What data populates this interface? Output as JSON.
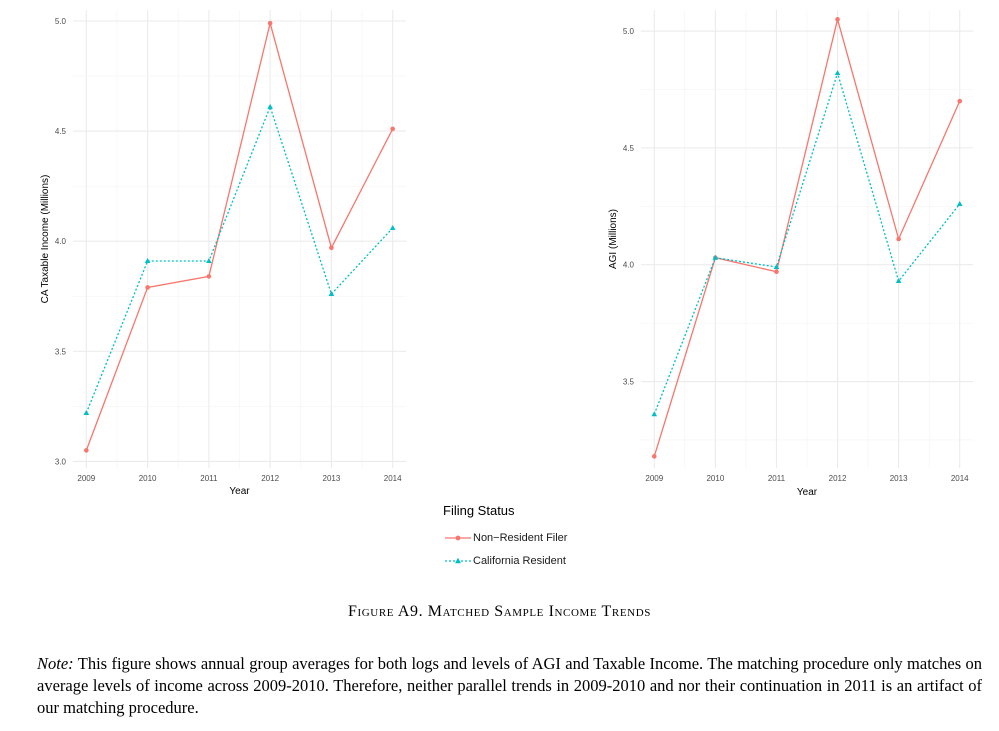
{
  "chart_data": [
    {
      "type": "line",
      "xlabel": "Year",
      "ylabel": "CA Taxable Income (Millions)",
      "x": [
        2009,
        2010,
        2011,
        2012,
        2013,
        2014
      ],
      "ylim": [
        2.97,
        5.05
      ],
      "yticks": [
        "3.0",
        "3.5",
        "4.0",
        "4.5",
        "5.0"
      ],
      "series": [
        {
          "name": "Non−Resident Filer",
          "color": "#F8766D",
          "marker": "circle",
          "dash": "solid",
          "values": [
            3.05,
            3.79,
            3.84,
            4.99,
            3.97,
            4.51
          ]
        },
        {
          "name": "California Resident",
          "color": "#00BFC4",
          "marker": "triangle",
          "dash": "dotted",
          "values": [
            3.22,
            3.91,
            3.91,
            4.61,
            3.76,
            4.06
          ]
        }
      ]
    },
    {
      "type": "line",
      "xlabel": "Year",
      "ylabel": "AGI (Millions)",
      "x": [
        2009,
        2010,
        2011,
        2012,
        2013,
        2014
      ],
      "ylim": [
        3.13,
        5.09
      ],
      "yticks": [
        "3.5",
        "4.0",
        "4.5",
        "5.0"
      ],
      "series": [
        {
          "name": "Non−Resident Filer",
          "color": "#F8766D",
          "marker": "circle",
          "dash": "solid",
          "values": [
            3.18,
            4.03,
            3.97,
            5.05,
            4.11,
            4.7
          ]
        },
        {
          "name": "California Resident",
          "color": "#00BFC4",
          "marker": "triangle",
          "dash": "dotted",
          "values": [
            3.36,
            4.03,
            3.99,
            4.82,
            3.93,
            4.26
          ]
        }
      ]
    }
  ],
  "legend": {
    "title": "Filing  Status",
    "items": [
      {
        "label": "Non−Resident Filer",
        "color": "#F8766D",
        "marker": "circle",
        "dash": "solid"
      },
      {
        "label": "California Resident",
        "color": "#00BFC4",
        "marker": "triangle",
        "dash": "dotted"
      }
    ]
  },
  "caption": {
    "prefix": "Figure A9.",
    "text": "Matched Sample Income Trends"
  },
  "note": {
    "label": "Note:",
    "text": "This figure shows annual group averages for both logs and levels of AGI and Taxable Income. The matching procedure only matches on average levels of income across 2009-2010. Therefore, neither parallel trends in 2009-2010 and nor their continuation in 2011 is an artifact of our matching procedure."
  }
}
